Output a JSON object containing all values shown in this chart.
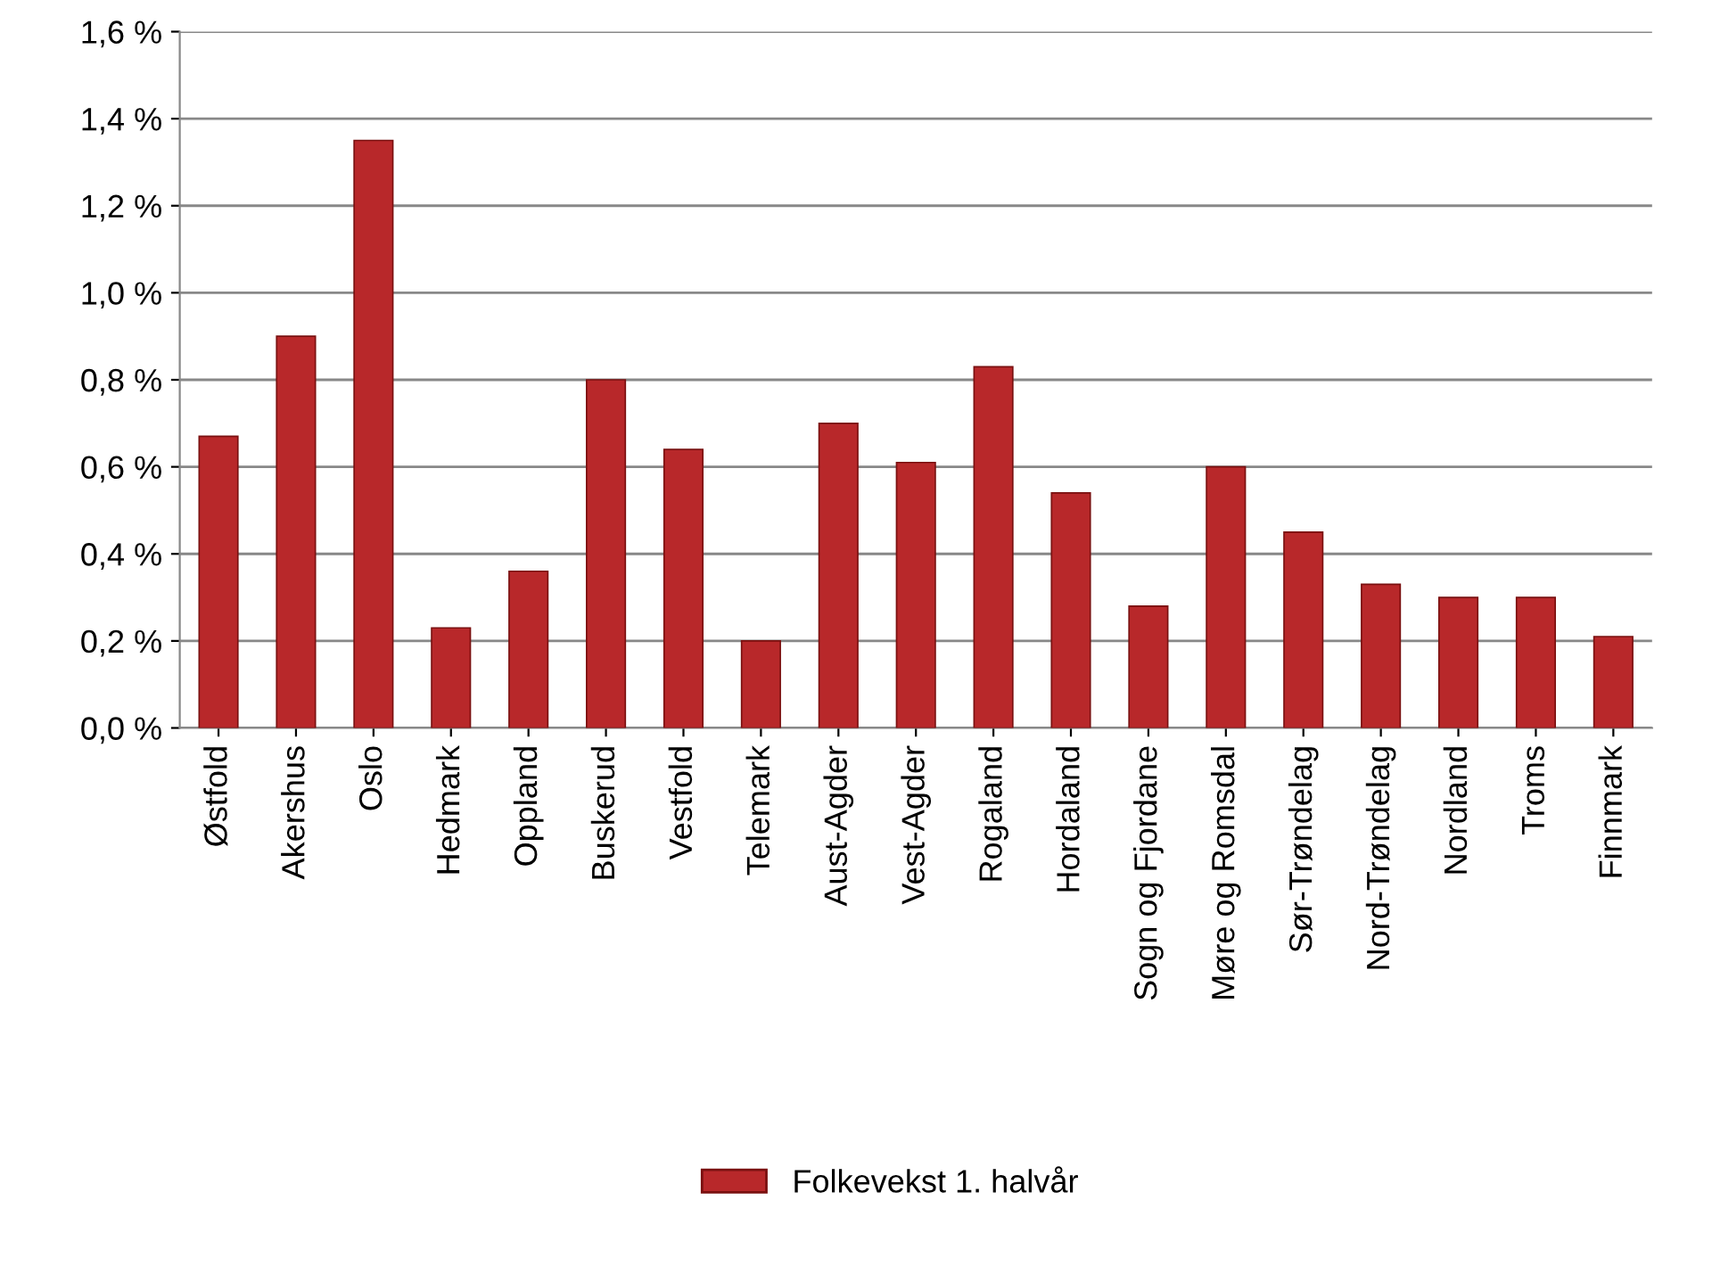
{
  "chart_data": {
    "type": "bar",
    "categories": [
      "Østfold",
      "Akershus",
      "Oslo",
      "Hedmark",
      "Oppland",
      "Buskerud",
      "Vestfold",
      "Telemark",
      "Aust-Agder",
      "Vest-Agder",
      "Rogaland",
      "Hordaland",
      "Sogn og Fjordane",
      "Møre og Romsdal",
      "Sør-Trøndelag",
      "Nord-Trøndelag",
      "Nordland",
      "Troms",
      "Finnmark"
    ],
    "series": [
      {
        "name": "Folkevekst 1. halvår",
        "color": "#b8282a",
        "values": [
          0.67,
          0.9,
          1.35,
          0.23,
          0.36,
          0.8,
          0.64,
          0.2,
          0.7,
          0.61,
          0.83,
          0.54,
          0.28,
          0.6,
          0.45,
          0.33,
          0.3,
          0.3,
          0.21
        ]
      }
    ],
    "ylim": [
      0,
      1.6
    ],
    "yticks": [
      {
        "value": 0,
        "label": "0,0 %"
      },
      {
        "value": 0.2,
        "label": "0,2 %"
      },
      {
        "value": 0.4,
        "label": "0,4 %"
      },
      {
        "value": 0.6,
        "label": "0,6 %"
      },
      {
        "value": 0.8,
        "label": "0,8 %"
      },
      {
        "value": 1.0,
        "label": "1,0 %"
      },
      {
        "value": 1.2,
        "label": "1,2 %"
      },
      {
        "value": 1.4,
        "label": "1,4 %"
      },
      {
        "value": 1.6,
        "label": "1,6 %"
      }
    ],
    "grid": "y",
    "legend": "bottom"
  }
}
